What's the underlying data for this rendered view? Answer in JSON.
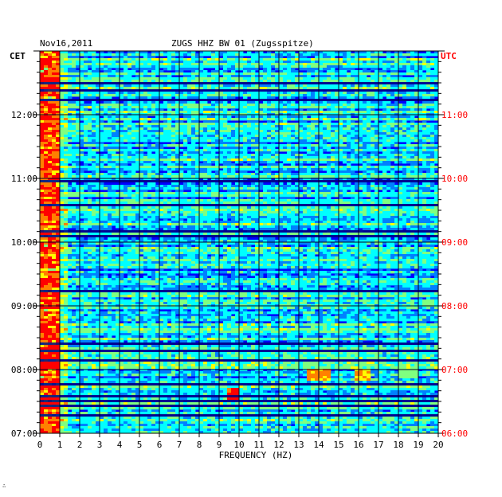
{
  "chart_data": {
    "type": "heatmap",
    "title_date": "Nov16,2011",
    "title": "ZUGS HHZ BW 01 (Zugsspitze)",
    "xlabel": "FREQUENCY (HZ)",
    "x_range": [
      0,
      20
    ],
    "x_ticks": [
      "0",
      "1",
      "2",
      "3",
      "4",
      "5",
      "6",
      "7",
      "8",
      "9",
      "10",
      "11",
      "12",
      "13",
      "14",
      "15",
      "16",
      "17",
      "18",
      "19",
      "20"
    ],
    "left_axis_label": "CET",
    "right_axis_label": "UTC",
    "left_ticks": [
      "07:00",
      "08:00",
      "09:00",
      "10:00",
      "11:00",
      "12:00"
    ],
    "right_ticks": [
      "06:00",
      "07:00",
      "08:00",
      "09:00",
      "10:00",
      "11:00"
    ],
    "time_range_cet": [
      "07:00",
      "13:00"
    ],
    "colormap": [
      "#00007f",
      "#0000ff",
      "#0080ff",
      "#00ffff",
      "#80ff80",
      "#ffff00",
      "#ff8000",
      "#ff0000"
    ],
    "left_tick_color": "#000000",
    "right_tick_color": "#ff0000",
    "grid": true,
    "features": [
      {
        "note": "strong low-frequency energy",
        "freq_hz": [
          0.1,
          0.8
        ],
        "intensity": 0.75
      },
      {
        "note": "broadband event",
        "freq_hz": [
          9.5,
          9.9
        ],
        "time_cet": "07:38",
        "intensity": 1.0
      },
      {
        "note": "burst",
        "freq_hz": [
          13.5,
          14.5
        ],
        "time_cet": "07:55",
        "intensity": 0.85
      },
      {
        "note": "burst",
        "freq_hz": [
          15.8,
          16.5
        ],
        "time_cet": "07:55",
        "intensity": 0.8
      },
      {
        "note": "burst",
        "freq_hz": [
          18.0,
          19.0
        ],
        "time_cet": "07:58",
        "intensity": 0.6
      }
    ]
  },
  "footer": {
    "credit": "∴"
  }
}
